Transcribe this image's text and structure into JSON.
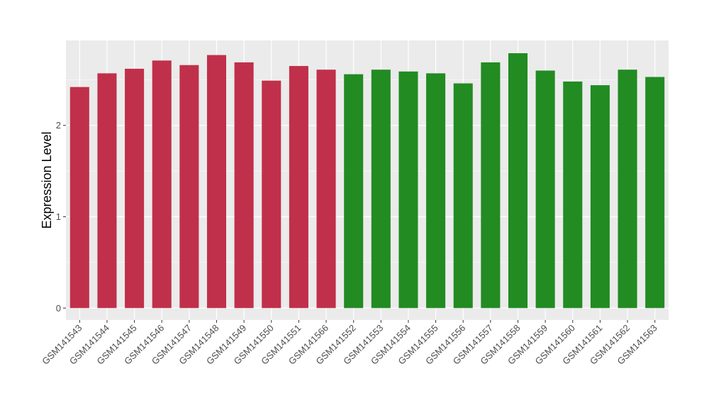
{
  "chart_data": {
    "type": "bar",
    "title": "",
    "xlabel": "",
    "ylabel": "Expression Level",
    "ylim": [
      -0.13,
      2.93
    ],
    "yticks": [
      0,
      1,
      2
    ],
    "grid": true,
    "legend": "none",
    "categories": [
      "GSM141543",
      "GSM141544",
      "GSM141545",
      "GSM141546",
      "GSM141547",
      "GSM141548",
      "GSM141549",
      "GSM141550",
      "GSM141551",
      "GSM141566",
      "GSM141552",
      "GSM141553",
      "GSM141554",
      "GSM141555",
      "GSM141556",
      "GSM141557",
      "GSM141558",
      "GSM141559",
      "GSM141560",
      "GSM141561",
      "GSM141562",
      "GSM141563"
    ],
    "values": [
      2.42,
      2.57,
      2.62,
      2.71,
      2.66,
      2.77,
      2.69,
      2.49,
      2.65,
      2.61,
      2.56,
      2.61,
      2.59,
      2.57,
      2.46,
      2.69,
      2.79,
      2.6,
      2.48,
      2.44,
      2.61,
      2.53
    ],
    "bar_colors": [
      "#c0304a",
      "#c0304a",
      "#c0304a",
      "#c0304a",
      "#c0304a",
      "#c0304a",
      "#c0304a",
      "#c0304a",
      "#c0304a",
      "#c0304a",
      "#228b22",
      "#228b22",
      "#228b22",
      "#228b22",
      "#228b22",
      "#228b22",
      "#228b22",
      "#228b22",
      "#228b22",
      "#228b22",
      "#228b22",
      "#228b22"
    ],
    "panel_color": "#ebebeb",
    "grid_color": "#ffffff"
  }
}
